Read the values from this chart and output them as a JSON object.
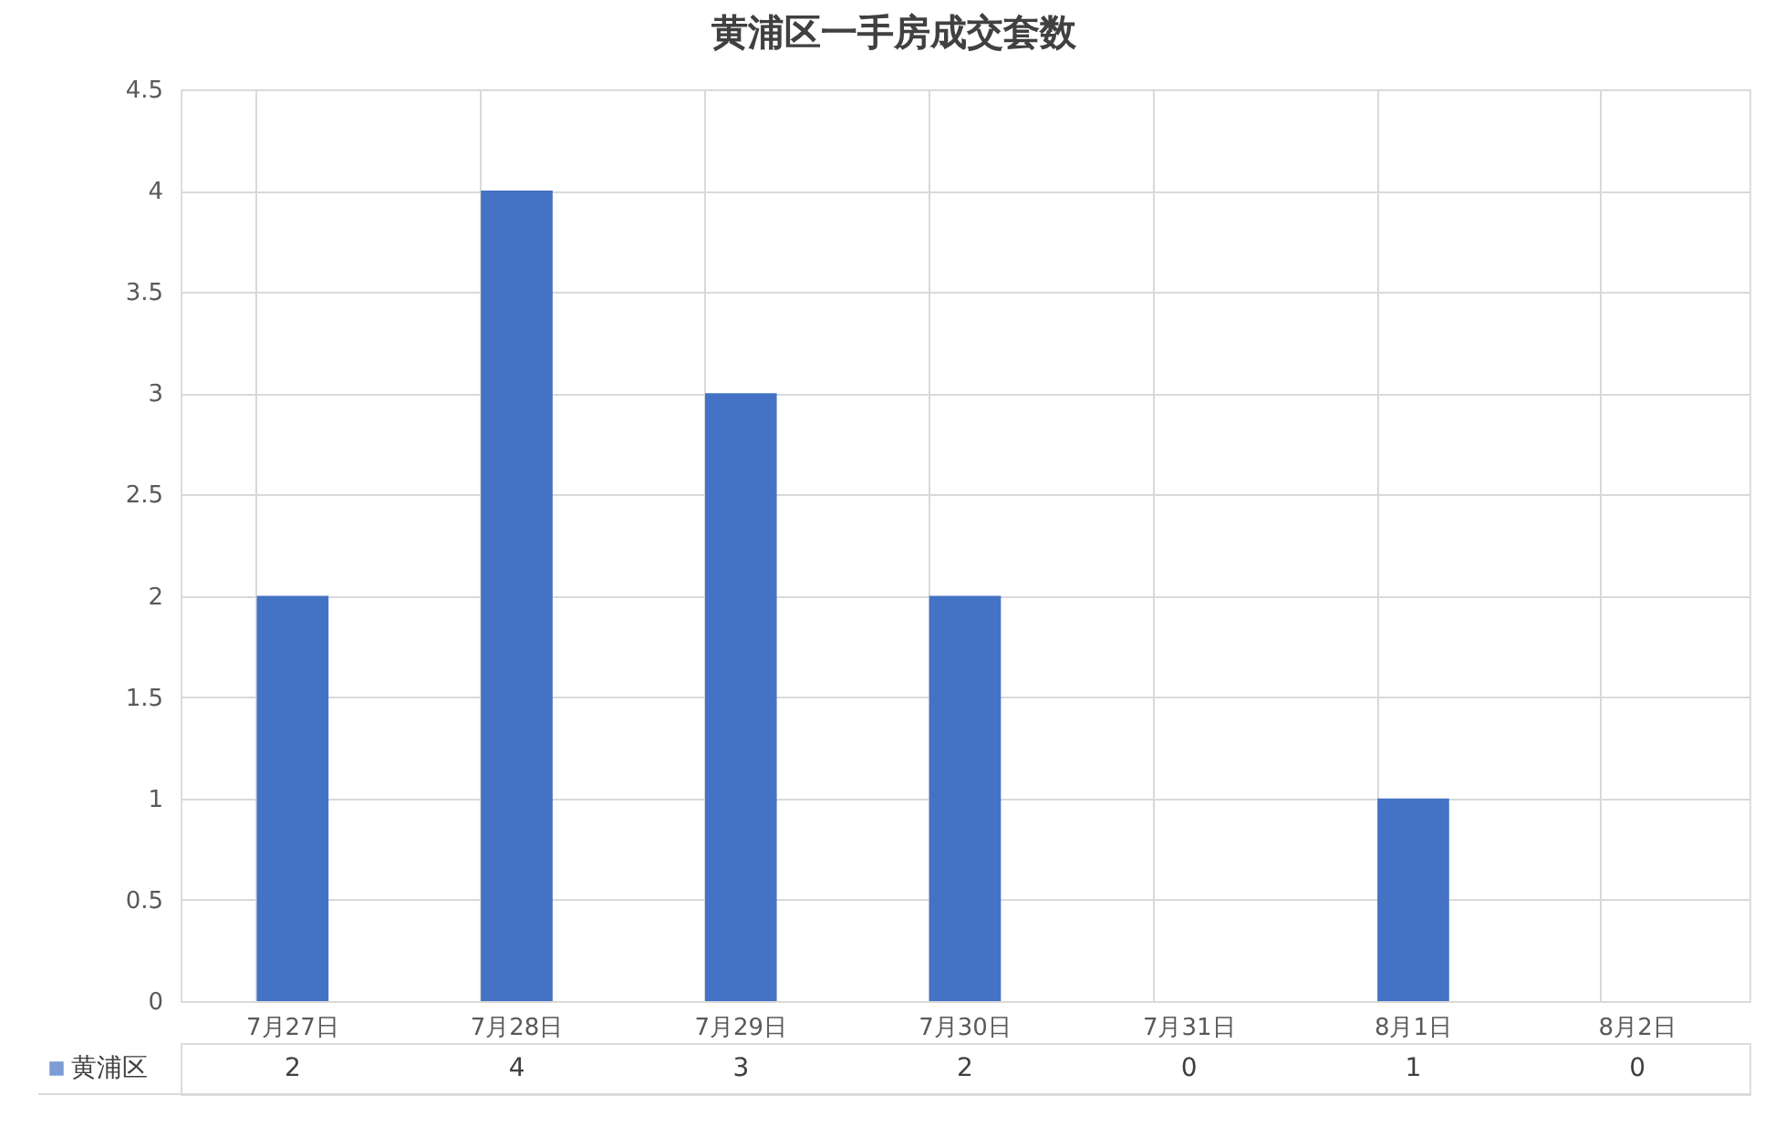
{
  "chart_data": {
    "type": "bar",
    "title": "黄浦区一手房成交套数",
    "categories": [
      "7月27日",
      "7月28日",
      "7月29日",
      "7月30日",
      "7月31日",
      "8月1日",
      "8月2日"
    ],
    "series": [
      {
        "name": "黄浦区",
        "color": "#4472c4",
        "values": [
          2,
          4,
          3,
          2,
          0,
          1,
          0
        ]
      }
    ],
    "ylim": [
      0,
      4.5
    ],
    "yticks": [
      0,
      0.5,
      1,
      1.5,
      2,
      2.5,
      3,
      3.5,
      4,
      4.5
    ],
    "grid": "y",
    "data_labels": true,
    "legend": "bottom"
  }
}
